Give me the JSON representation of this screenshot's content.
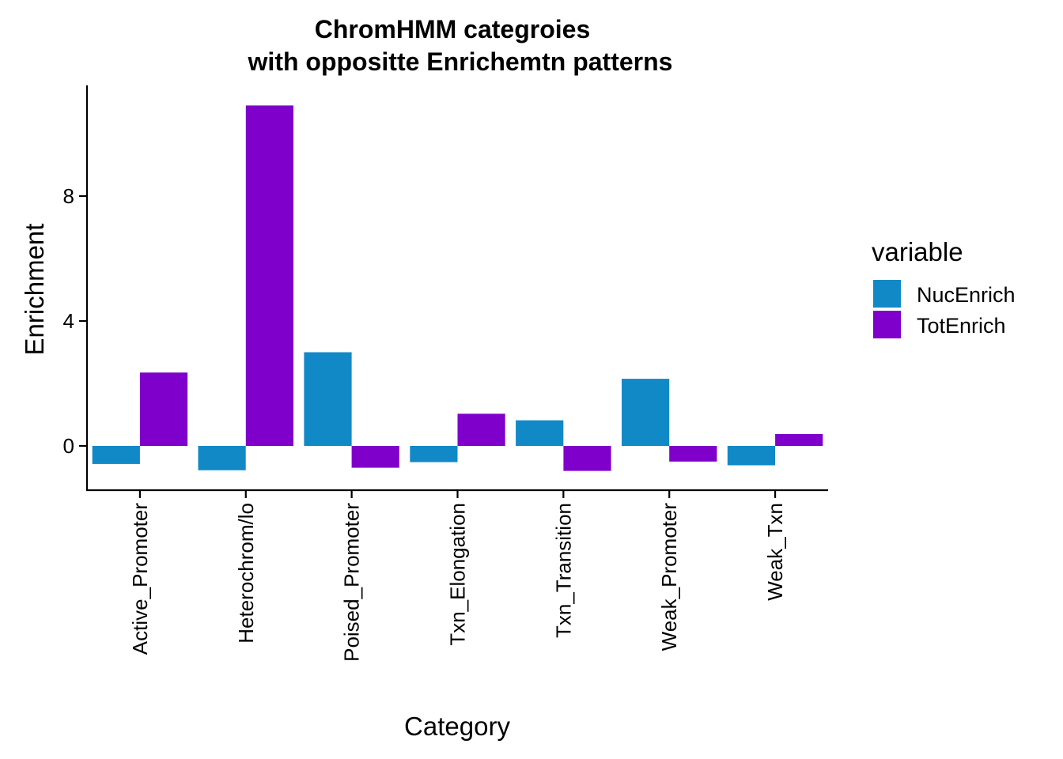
{
  "chart_data": {
    "type": "bar",
    "title_lines": [
      "ChromHMM categroies",
      "with oppositte Enrichemtn patterns"
    ],
    "xlabel": "Category",
    "ylabel": "Enrichment",
    "categories": [
      "Active_Promoter",
      "Heterochrom/lo",
      "Poised_Promoter",
      "Txn_Elongation",
      "Txn_Transition",
      "Weak_Promoter",
      "Weak_Txn"
    ],
    "series": [
      {
        "name": "NucEnrich",
        "color": "#1289C7",
        "values": [
          -0.58,
          -0.78,
          3.0,
          -0.52,
          0.82,
          2.15,
          -0.62
        ]
      },
      {
        "name": "TotEnrich",
        "color": "#7F00CB",
        "values": [
          2.35,
          10.9,
          -0.7,
          1.03,
          -0.8,
          -0.5,
          0.38
        ]
      }
    ],
    "yticks": [
      0,
      4,
      8
    ],
    "ylim": [
      -1.4,
      11.5
    ],
    "legend": {
      "title": "variable",
      "position": "right"
    },
    "grid": false
  }
}
